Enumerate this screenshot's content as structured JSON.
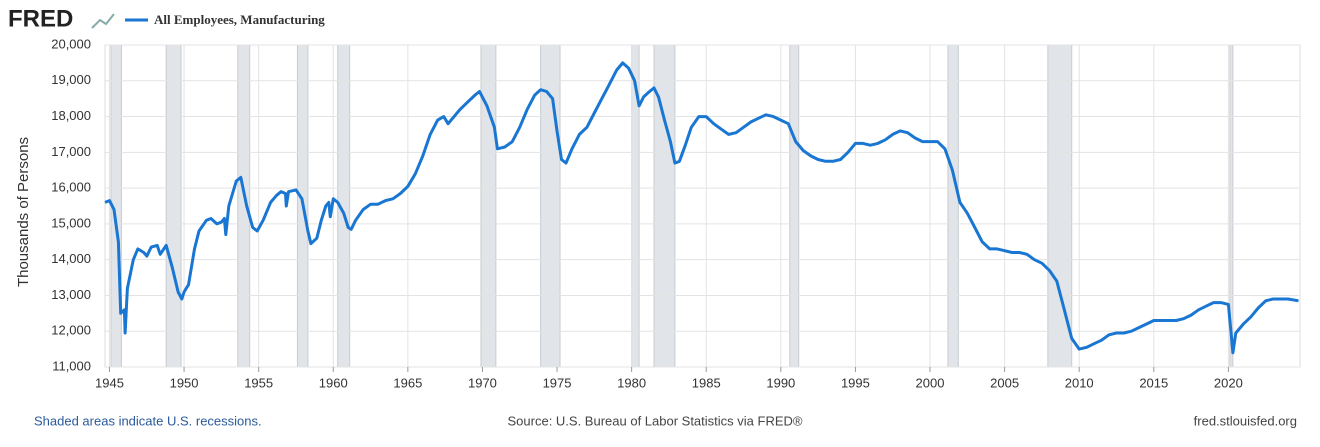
{
  "logo": "FRED",
  "footer": {
    "left": "Shaded areas indicate U.S. recessions.",
    "center": "Source: U.S. Bureau of Labor Statistics via FRED®",
    "right": "fred.stlouisfed.org"
  },
  "chart_data": {
    "type": "line",
    "ylabel": "Thousands of Persons",
    "grid": true,
    "xlim": [
      1944.7,
      2024.8
    ],
    "ylim": [
      11000,
      20000
    ],
    "xticks": [
      1945,
      1950,
      1955,
      1960,
      1965,
      1970,
      1975,
      1980,
      1985,
      1990,
      1995,
      2000,
      2005,
      2010,
      2015,
      2020
    ],
    "yticks": [
      {
        "value": 11000,
        "label": "11,000"
      },
      {
        "value": 12000,
        "label": "12,000"
      },
      {
        "value": 13000,
        "label": "13,000"
      },
      {
        "value": 14000,
        "label": "14,000"
      },
      {
        "value": 15000,
        "label": "15,000"
      },
      {
        "value": 16000,
        "label": "16,000"
      },
      {
        "value": 17000,
        "label": "17,000"
      },
      {
        "value": 18000,
        "label": "18,000"
      },
      {
        "value": 19000,
        "label": "19,000"
      },
      {
        "value": 20000,
        "label": "20,000"
      }
    ],
    "recession_color": "#e1e4e8",
    "recessions": [
      [
        1945.1,
        1945.8
      ],
      [
        1948.8,
        1949.8
      ],
      [
        1953.6,
        1954.4
      ],
      [
        1957.6,
        1958.3
      ],
      [
        1960.3,
        1961.1
      ],
      [
        1969.9,
        1970.9
      ],
      [
        1973.9,
        1975.2
      ],
      [
        1980.0,
        1980.5
      ],
      [
        1981.5,
        1982.9
      ],
      [
        1990.6,
        1991.2
      ],
      [
        2001.2,
        2001.9
      ],
      [
        2007.9,
        2009.5
      ],
      [
        2020.1,
        2020.3
      ]
    ],
    "x": [
      1944.7,
      1945.0,
      1945.3,
      1945.6,
      1945.75,
      1946.0,
      1946.05,
      1946.2,
      1946.6,
      1946.9,
      1947.3,
      1947.5,
      1947.8,
      1948.2,
      1948.4,
      1948.8,
      1949.2,
      1949.6,
      1949.85,
      1950.0,
      1950.3,
      1950.7,
      1951.0,
      1951.5,
      1951.8,
      1952.2,
      1952.5,
      1952.7,
      1952.8,
      1953.0,
      1953.5,
      1953.8,
      1954.2,
      1954.6,
      1954.9,
      1955.3,
      1955.8,
      1956.2,
      1956.5,
      1956.8,
      1956.85,
      1957.0,
      1957.5,
      1957.9,
      1958.3,
      1958.5,
      1958.9,
      1959.2,
      1959.5,
      1959.7,
      1959.8,
      1960.0,
      1960.3,
      1960.7,
      1961.0,
      1961.2,
      1961.5,
      1962.0,
      1962.5,
      1963.0,
      1963.5,
      1964.0,
      1964.5,
      1965.0,
      1965.5,
      1966.0,
      1966.5,
      1967.0,
      1967.4,
      1967.7,
      1968.0,
      1968.5,
      1969.0,
      1969.5,
      1969.8,
      1970.3,
      1970.8,
      1971.0,
      1971.5,
      1972.0,
      1972.5,
      1973.0,
      1973.5,
      1973.9,
      1974.3,
      1974.7,
      1975.0,
      1975.3,
      1975.6,
      1976.0,
      1976.5,
      1977.0,
      1977.5,
      1978.0,
      1978.5,
      1979.0,
      1979.4,
      1979.8,
      1980.2,
      1980.5,
      1980.8,
      1981.2,
      1981.5,
      1981.8,
      1982.2,
      1982.6,
      1982.9,
      1983.2,
      1983.6,
      1984.0,
      1984.5,
      1985.0,
      1985.5,
      1986.0,
      1986.5,
      1987.0,
      1987.5,
      1988.0,
      1988.5,
      1989.0,
      1989.5,
      1990.0,
      1990.5,
      1991.0,
      1991.5,
      1992.0,
      1992.5,
      1993.0,
      1993.5,
      1994.0,
      1994.5,
      1995.0,
      1995.5,
      1996.0,
      1996.5,
      1997.0,
      1997.5,
      1998.0,
      1998.5,
      1999.0,
      1999.5,
      2000.0,
      2000.5,
      2001.0,
      2001.5,
      2002.0,
      2002.5,
      2003.0,
      2003.5,
      2004.0,
      2004.5,
      2005.0,
      2005.5,
      2006.0,
      2006.5,
      2007.0,
      2007.5,
      2008.0,
      2008.5,
      2009.0,
      2009.5,
      2010.0,
      2010.5,
      2011.0,
      2011.5,
      2012.0,
      2012.5,
      2013.0,
      2013.5,
      2014.0,
      2014.5,
      2015.0,
      2015.5,
      2016.0,
      2016.5,
      2017.0,
      2017.5,
      2018.0,
      2018.5,
      2019.0,
      2019.5,
      2020.0,
      2020.3,
      2020.5,
      2021.0,
      2021.5,
      2022.0,
      2022.5,
      2023.0,
      2023.5,
      2024.0,
      2024.7
    ],
    "series": [
      {
        "name": "All Employees, Manufacturing",
        "color": "#1976d2",
        "values": [
          15600,
          15650,
          15400,
          14500,
          12500,
          12600,
          11950,
          13200,
          14000,
          14300,
          14200,
          14100,
          14350,
          14400,
          14150,
          14400,
          13800,
          13100,
          12900,
          13100,
          13300,
          14300,
          14800,
          15100,
          15150,
          15000,
          15050,
          15150,
          14700,
          15500,
          16200,
          16300,
          15500,
          14900,
          14800,
          15100,
          15600,
          15800,
          15900,
          15850,
          15500,
          15900,
          15950,
          15700,
          14800,
          14450,
          14600,
          15100,
          15500,
          15600,
          15200,
          15700,
          15600,
          15300,
          14900,
          14850,
          15100,
          15400,
          15550,
          15550,
          15650,
          15700,
          15850,
          16050,
          16400,
          16900,
          17500,
          17900,
          18000,
          17800,
          17950,
          18200,
          18400,
          18600,
          18700,
          18300,
          17700,
          17100,
          17150,
          17300,
          17700,
          18200,
          18600,
          18750,
          18700,
          18500,
          17600,
          16800,
          16700,
          17100,
          17500,
          17700,
          18100,
          18500,
          18900,
          19300,
          19500,
          19350,
          19000,
          18300,
          18550,
          18700,
          18800,
          18550,
          17900,
          17300,
          16700,
          16750,
          17200,
          17700,
          18000,
          18000,
          17800,
          17650,
          17500,
          17550,
          17700,
          17850,
          17950,
          18050,
          18000,
          17900,
          17800,
          17300,
          17050,
          16900,
          16800,
          16750,
          16750,
          16800,
          17000,
          17250,
          17250,
          17200,
          17250,
          17350,
          17500,
          17600,
          17550,
          17400,
          17300,
          17300,
          17300,
          17100,
          16500,
          15600,
          15300,
          14900,
          14500,
          14300,
          14300,
          14250,
          14200,
          14200,
          14150,
          14000,
          13900,
          13700,
          13400,
          12600,
          11800,
          11500,
          11550,
          11650,
          11750,
          11900,
          11950,
          11950,
          12000,
          12100,
          12200,
          12300,
          12300,
          12300,
          12300,
          12350,
          12450,
          12600,
          12700,
          12800,
          12800,
          12750,
          11400,
          11950,
          12200,
          12400,
          12650,
          12850,
          12900,
          12900,
          12900,
          12850
        ]
      }
    ]
  }
}
